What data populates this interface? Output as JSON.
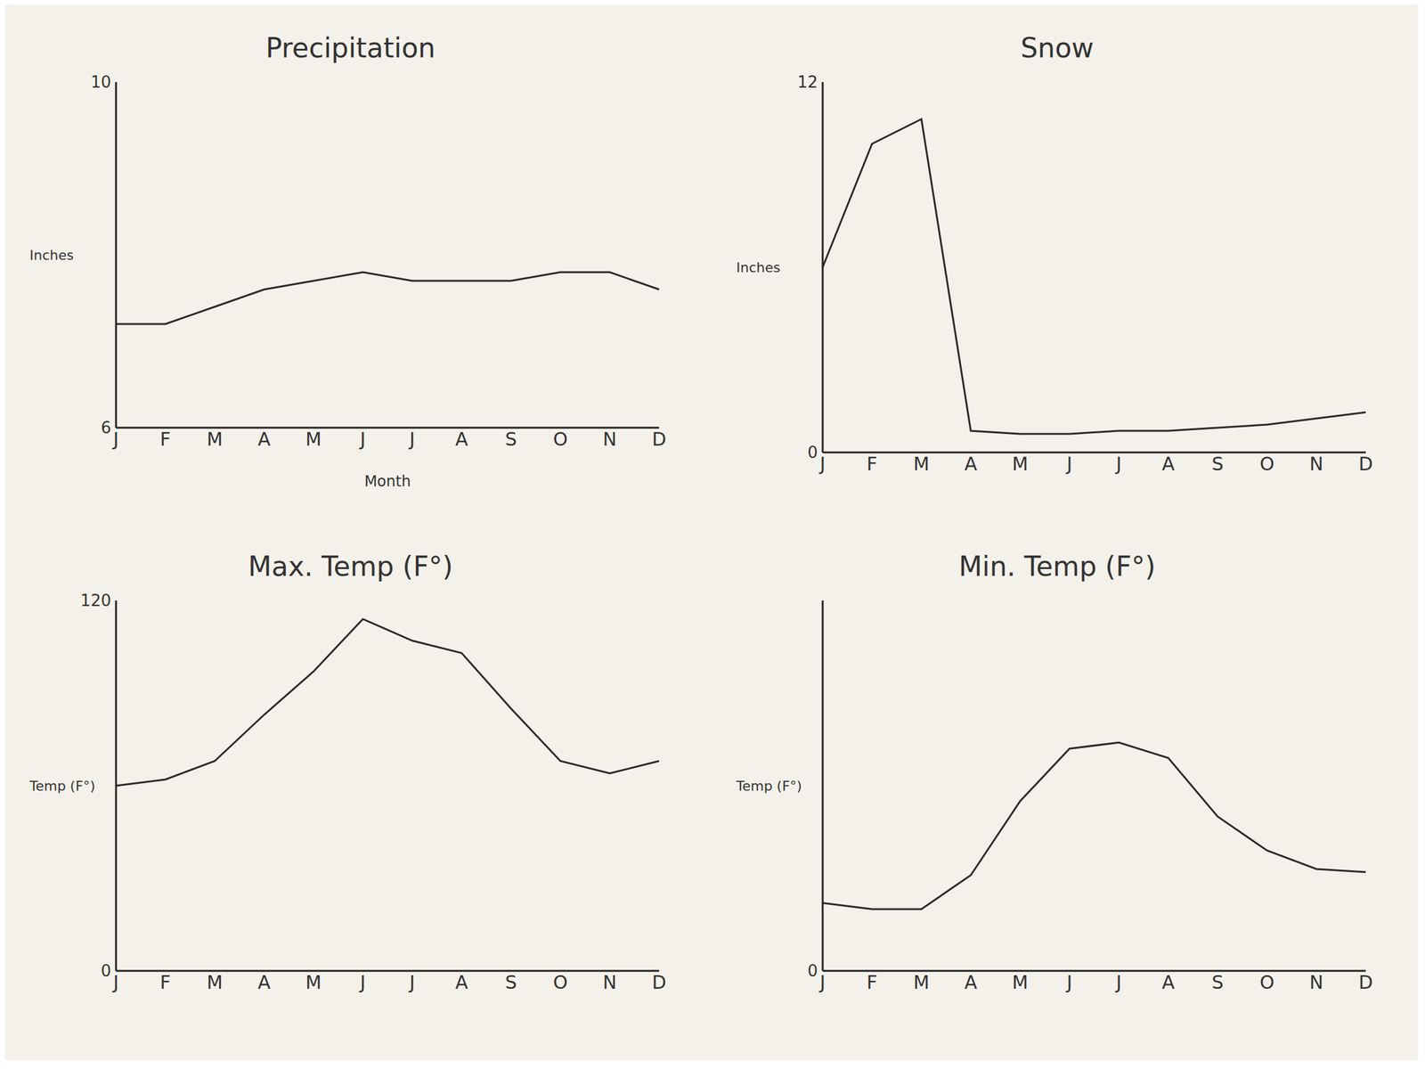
{
  "chart_data": [
    {
      "type": "line",
      "title": "Precipitation",
      "y_label": "Inches",
      "x_label": "Month",
      "categories": [
        "J",
        "F",
        "M",
        "A",
        "M",
        "J",
        "J",
        "A",
        "S",
        "O",
        "N",
        "D"
      ],
      "values": [
        7.2,
        7.2,
        7.4,
        7.6,
        7.7,
        7.8,
        7.7,
        7.7,
        7.7,
        7.8,
        7.8,
        7.6
      ],
      "ylim": [
        6,
        10
      ],
      "yticks": [
        6,
        10
      ],
      "color": "#2a2a2a"
    },
    {
      "type": "line",
      "title": "Snow",
      "y_label": "Inches",
      "categories": [
        "J",
        "F",
        "M",
        "A",
        "M",
        "J",
        "J",
        "A",
        "S",
        "O",
        "N",
        "D"
      ],
      "values": [
        6,
        10,
        10.8,
        0.7,
        0.6,
        0.6,
        0.7,
        0.7,
        0.8,
        0.9,
        1.1,
        1.3
      ],
      "ylim": [
        0,
        12
      ],
      "yticks": [
        0,
        12
      ],
      "color": "#2a2a2a"
    },
    {
      "type": "line",
      "title": "Max. Temp (F°)",
      "y_label": "Temp (F°)",
      "categories": [
        "J",
        "F",
        "M",
        "A",
        "M",
        "J",
        "J",
        "A",
        "S",
        "O",
        "N",
        "D"
      ],
      "values": [
        60,
        62,
        68,
        83,
        97,
        114,
        107,
        103,
        85,
        68,
        64,
        68
      ],
      "ylim": [
        0,
        120
      ],
      "yticks": [
        0,
        120
      ],
      "color": "#2a2a2a"
    },
    {
      "type": "line",
      "title": "Min. Temp (F°)",
      "y_label": "Temp (F°)",
      "categories": [
        "J",
        "F",
        "M",
        "A",
        "M",
        "J",
        "J",
        "A",
        "S",
        "O",
        "N",
        "D"
      ],
      "values": [
        22,
        20,
        20,
        31,
        55,
        72,
        74,
        69,
        50,
        39,
        33,
        32
      ],
      "ylim": [
        0,
        120
      ],
      "yticks": [
        0
      ],
      "color": "#2a2a2a"
    }
  ]
}
